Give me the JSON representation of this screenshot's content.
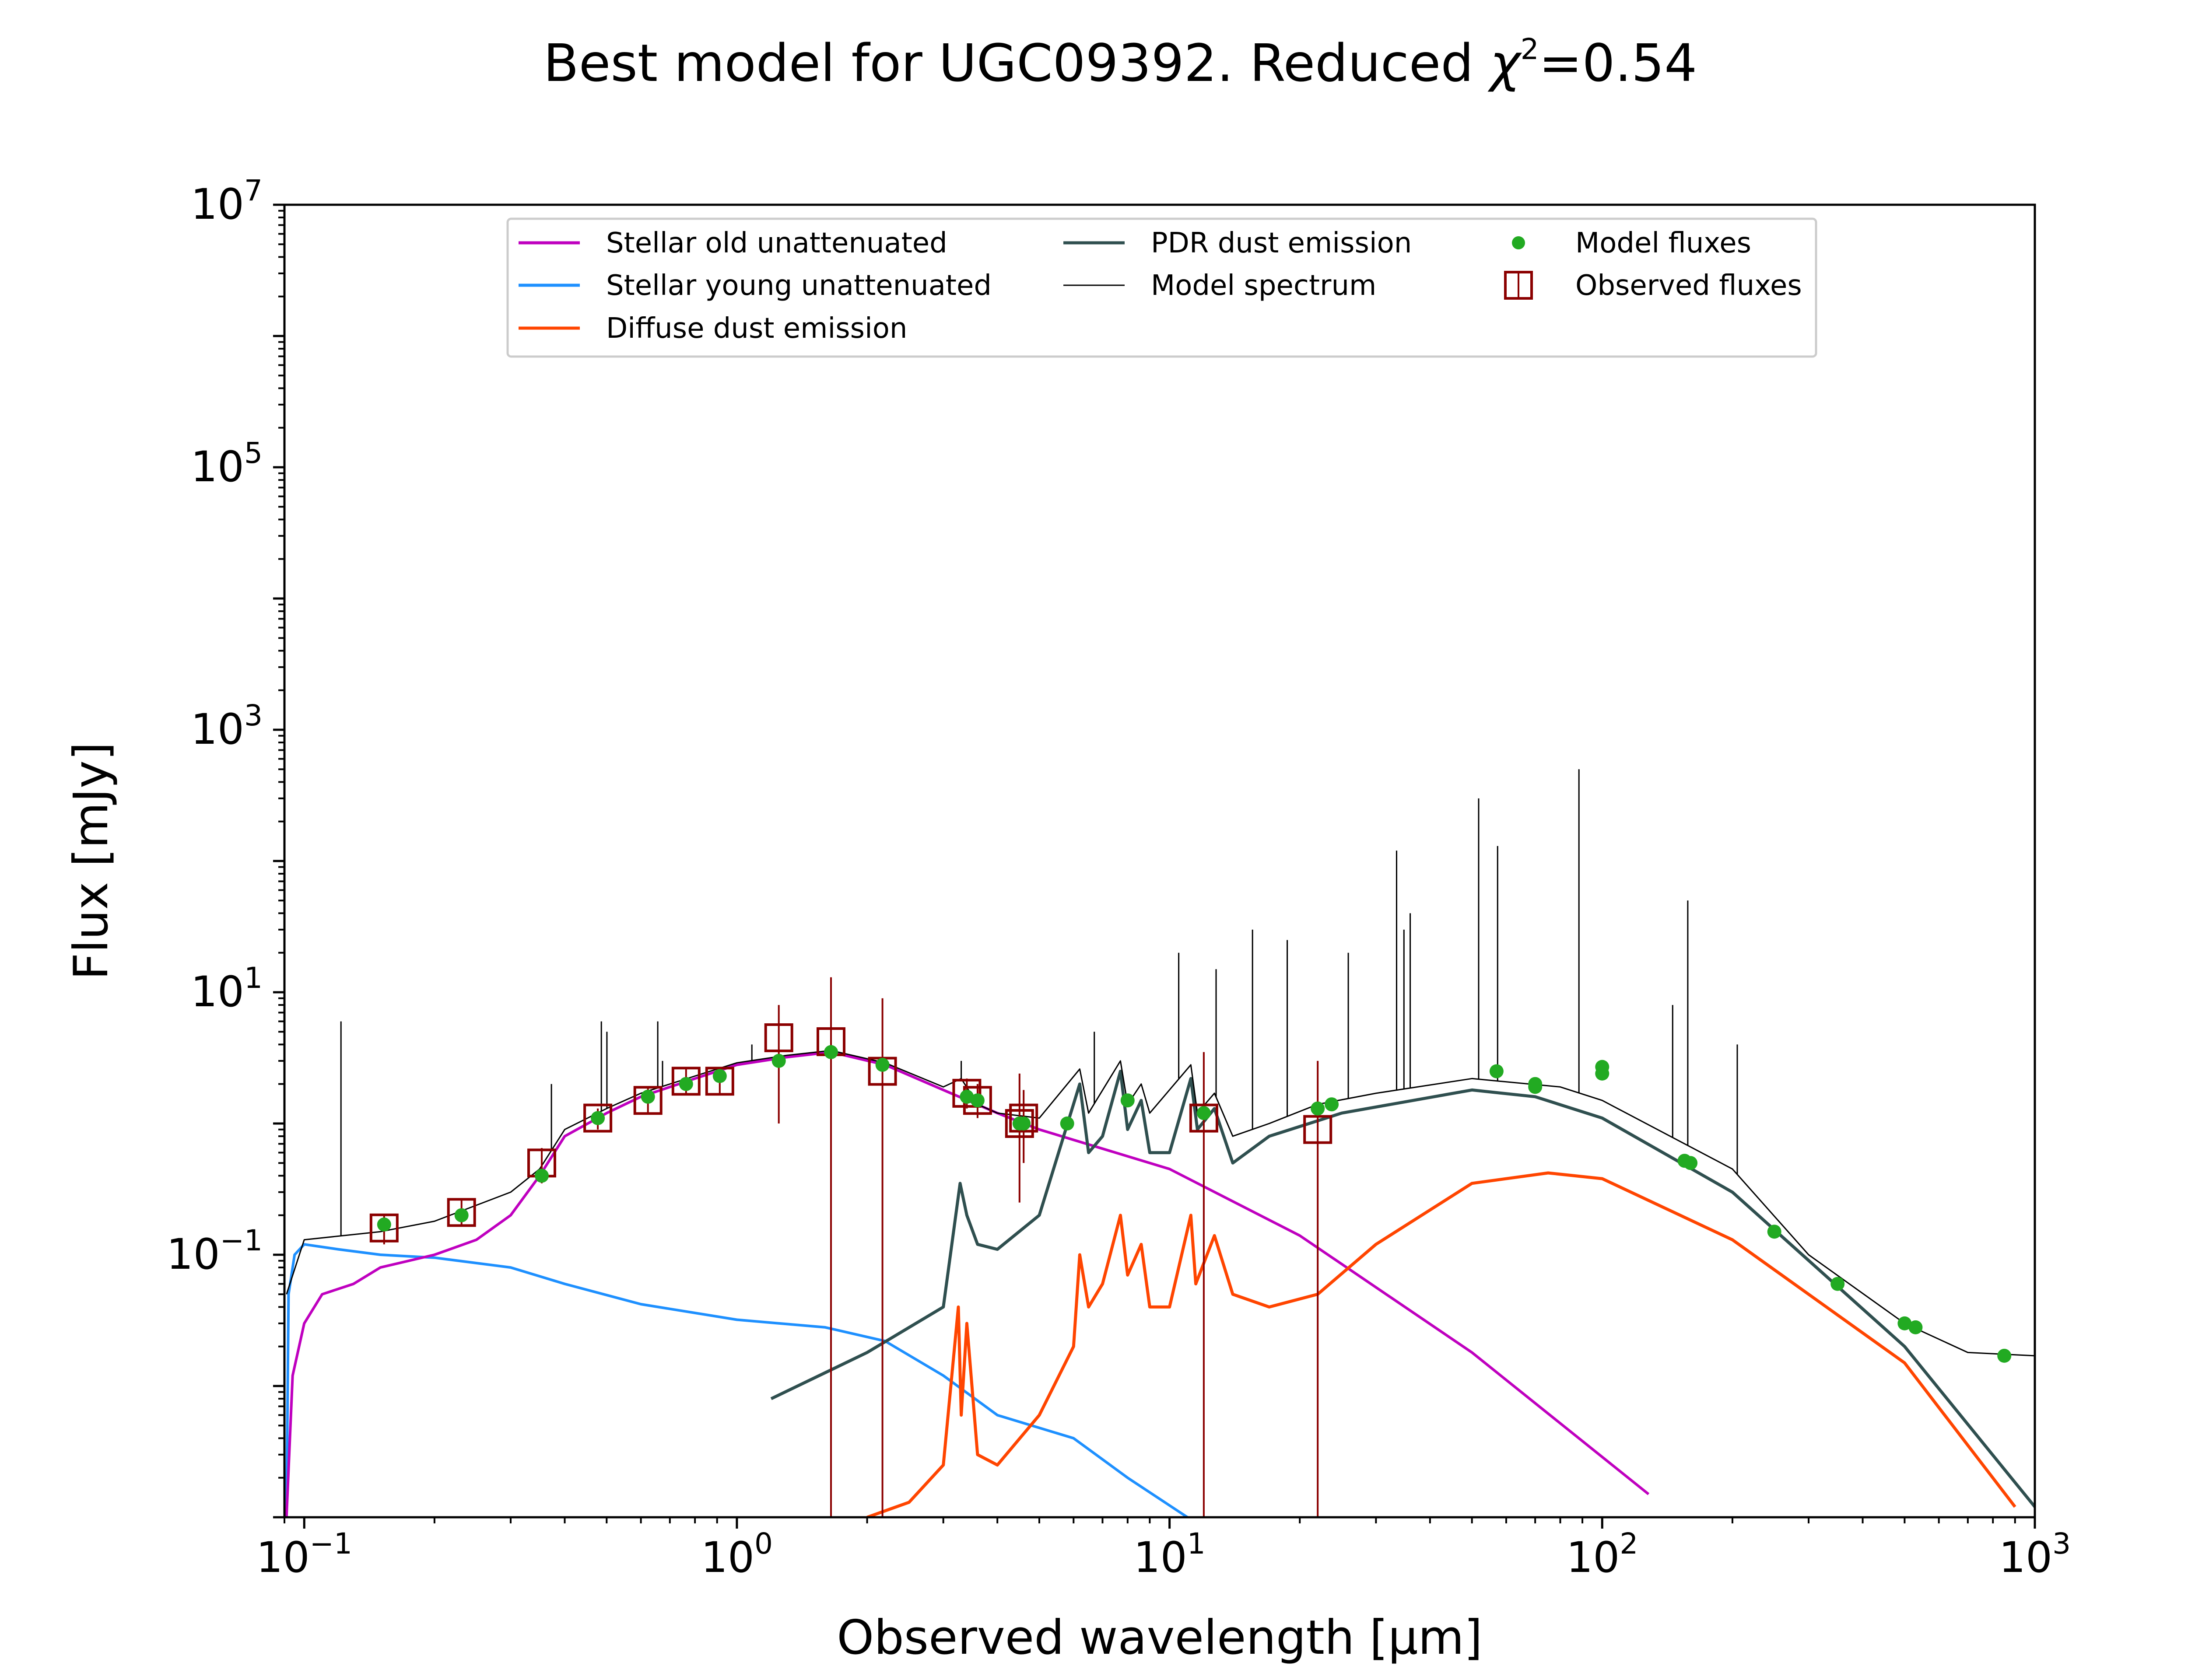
{
  "title": {
    "prefix": "Best model for UGC09392. Reduced ",
    "chi": "χ",
    "sup": "2",
    "suffix": "=0.54"
  },
  "colors": {
    "stellar_old": "#bf00bf",
    "stellar_young": "#1e90ff",
    "diffuse_dust": "#ff4500",
    "pdr_dust": "#2f4f4f",
    "model_spectrum": "#000000",
    "model_fluxes": "#22aa22",
    "observed_fluxes": "#8b0000"
  },
  "chart_data": {
    "type": "line",
    "title": "Best model for UGC09392. Reduced χ²=0.54",
    "xlabel": "Observed wavelength [μm]",
    "ylabel": "Flux [mJy]",
    "xscale": "log",
    "yscale": "log",
    "xlim": [
      0.09,
      1000
    ],
    "ylim": [
      0.001,
      10000000
    ],
    "x_ticks": [
      {
        "value": 0.1,
        "base": "10",
        "exp": "−1"
      },
      {
        "value": 1,
        "base": "10",
        "exp": "0"
      },
      {
        "value": 10,
        "base": "10",
        "exp": "1"
      },
      {
        "value": 100,
        "base": "10",
        "exp": "2"
      },
      {
        "value": 1000,
        "base": "10",
        "exp": "3"
      }
    ],
    "y_ticks": [
      {
        "value": 0.1,
        "base": "10",
        "exp": "−1"
      },
      {
        "value": 10,
        "base": "10",
        "exp": "1"
      },
      {
        "value": 1000,
        "base": "10",
        "exp": "3"
      },
      {
        "value": 100000,
        "base": "10",
        "exp": "5"
      },
      {
        "value": 10000000,
        "base": "10",
        "exp": "7"
      }
    ],
    "legend_position": "upper center",
    "legend": [
      {
        "label": "Stellar old unattenuated",
        "series": "stellar_old"
      },
      {
        "label": "Stellar young unattenuated",
        "series": "stellar_young"
      },
      {
        "label": "Diffuse dust emission",
        "series": "diffuse_dust"
      },
      {
        "label": "PDR dust emission",
        "series": "pdr_dust"
      },
      {
        "label": "Model spectrum",
        "series": "model_spectrum"
      },
      {
        "label": "Model fluxes",
        "series": "model_fluxes"
      },
      {
        "label": "Observed fluxes",
        "series": "observed_fluxes"
      }
    ],
    "series": [
      {
        "key": "stellar_old",
        "name": "Stellar old unattenuated",
        "points": [
          [
            0.091,
            0.001
          ],
          [
            0.094,
            0.012
          ],
          [
            0.1,
            0.03
          ],
          [
            0.11,
            0.05
          ],
          [
            0.13,
            0.06
          ],
          [
            0.15,
            0.08
          ],
          [
            0.2,
            0.1
          ],
          [
            0.25,
            0.13
          ],
          [
            0.3,
            0.2
          ],
          [
            0.35,
            0.4
          ],
          [
            0.4,
            0.8
          ],
          [
            0.5,
            1.2
          ],
          [
            0.6,
            1.6
          ],
          [
            0.8,
            2.2
          ],
          [
            1.0,
            2.8
          ],
          [
            1.3,
            3.2
          ],
          [
            1.65,
            3.5
          ],
          [
            2.2,
            2.8
          ],
          [
            3.0,
            1.8
          ],
          [
            4.0,
            1.2
          ],
          [
            5.0,
            0.9
          ],
          [
            10,
            0.45
          ],
          [
            20,
            0.14
          ],
          [
            50,
            0.018
          ],
          [
            128,
            0.0015
          ]
        ]
      },
      {
        "key": "stellar_young",
        "name": "Stellar young unattenuated",
        "points": [
          [
            0.091,
            0.001
          ],
          [
            0.092,
            0.05
          ],
          [
            0.095,
            0.1
          ],
          [
            0.1,
            0.12
          ],
          [
            0.12,
            0.11
          ],
          [
            0.15,
            0.1
          ],
          [
            0.2,
            0.095
          ],
          [
            0.3,
            0.08
          ],
          [
            0.4,
            0.06
          ],
          [
            0.6,
            0.042
          ],
          [
            1.0,
            0.032
          ],
          [
            1.6,
            0.028
          ],
          [
            2.2,
            0.022
          ],
          [
            3.0,
            0.012
          ],
          [
            4.0,
            0.006
          ],
          [
            6.0,
            0.004
          ],
          [
            8.0,
            0.002
          ],
          [
            11,
            0.001
          ]
        ]
      },
      {
        "key": "diffuse_dust",
        "name": "Diffuse dust emission",
        "points": [
          [
            2.0,
            0.001
          ],
          [
            2.5,
            0.0013
          ],
          [
            3.0,
            0.0025
          ],
          [
            3.25,
            0.04
          ],
          [
            3.3,
            0.006
          ],
          [
            3.4,
            0.03
          ],
          [
            3.6,
            0.003
          ],
          [
            4.0,
            0.0025
          ],
          [
            5.0,
            0.006
          ],
          [
            6.0,
            0.02
          ],
          [
            6.2,
            0.1
          ],
          [
            6.5,
            0.04
          ],
          [
            7.0,
            0.06
          ],
          [
            7.7,
            0.2
          ],
          [
            8.0,
            0.07
          ],
          [
            8.6,
            0.12
          ],
          [
            9.0,
            0.04
          ],
          [
            10,
            0.04
          ],
          [
            11.2,
            0.2
          ],
          [
            11.5,
            0.06
          ],
          [
            12.7,
            0.14
          ],
          [
            14,
            0.05
          ],
          [
            17,
            0.04
          ],
          [
            22,
            0.05
          ],
          [
            30,
            0.12
          ],
          [
            50,
            0.35
          ],
          [
            75,
            0.42
          ],
          [
            100,
            0.38
          ],
          [
            200,
            0.13
          ],
          [
            500,
            0.015
          ],
          [
            900,
            0.0012
          ]
        ]
      },
      {
        "key": "pdr_dust",
        "name": "PDR dust emission",
        "points": [
          [
            1.2,
            0.008
          ],
          [
            2.0,
            0.018
          ],
          [
            3.0,
            0.04
          ],
          [
            3.28,
            0.35
          ],
          [
            3.4,
            0.2
          ],
          [
            3.6,
            0.12
          ],
          [
            4.0,
            0.11
          ],
          [
            5.0,
            0.2
          ],
          [
            6.2,
            2.0
          ],
          [
            6.5,
            0.6
          ],
          [
            7.0,
            0.8
          ],
          [
            7.7,
            2.5
          ],
          [
            8.0,
            0.9
          ],
          [
            8.6,
            1.5
          ],
          [
            9.0,
            0.6
          ],
          [
            10,
            0.6
          ],
          [
            11.2,
            2.2
          ],
          [
            11.6,
            0.9
          ],
          [
            12.7,
            1.3
          ],
          [
            14,
            0.5
          ],
          [
            17,
            0.8
          ],
          [
            25,
            1.2
          ],
          [
            50,
            1.8
          ],
          [
            70,
            1.6
          ],
          [
            100,
            1.1
          ],
          [
            200,
            0.3
          ],
          [
            500,
            0.02
          ],
          [
            1000,
            0.0012
          ]
        ]
      },
      {
        "key": "model_spectrum",
        "name": "Model spectrum",
        "points": [
          [
            0.091,
            0.05
          ],
          [
            0.1,
            0.13
          ],
          [
            0.15,
            0.15
          ],
          [
            0.2,
            0.18
          ],
          [
            0.3,
            0.3
          ],
          [
            0.35,
            0.45
          ],
          [
            0.4,
            0.9
          ],
          [
            0.5,
            1.3
          ],
          [
            0.6,
            1.7
          ],
          [
            0.8,
            2.3
          ],
          [
            1.0,
            2.9
          ],
          [
            1.3,
            3.3
          ],
          [
            1.65,
            3.6
          ],
          [
            2.2,
            2.9
          ],
          [
            3.0,
            1.9
          ],
          [
            3.3,
            2.2
          ],
          [
            3.6,
            1.4
          ],
          [
            4.0,
            1.2
          ],
          [
            5.0,
            1.1
          ],
          [
            6.2,
            2.6
          ],
          [
            6.5,
            1.2
          ],
          [
            7.7,
            3.0
          ],
          [
            8.0,
            1.4
          ],
          [
            8.6,
            2.0
          ],
          [
            9.0,
            1.2
          ],
          [
            11.2,
            2.8
          ],
          [
            11.6,
            1.2
          ],
          [
            12.7,
            1.7
          ],
          [
            14,
            0.8
          ],
          [
            17,
            1.0
          ],
          [
            22,
            1.4
          ],
          [
            30,
            1.7
          ],
          [
            50,
            2.2
          ],
          [
            80,
            1.9
          ],
          [
            100,
            1.5
          ],
          [
            200,
            0.45
          ],
          [
            300,
            0.1
          ],
          [
            500,
            0.03
          ],
          [
            700,
            0.018
          ],
          [
            1000,
            0.017
          ]
        ]
      },
      {
        "key": "model_spectrum_lines",
        "name": "Model spectrum",
        "type": "vlines",
        "x": [
          0.1216,
          0.3727,
          0.4861,
          0.5007,
          0.6563,
          0.6731,
          1.083,
          3.3,
          6.7,
          10.5,
          12.81,
          15.55,
          18.71,
          25.89,
          33.48,
          34.82,
          36.0,
          51.81,
          57.32,
          88.36,
          145.5,
          157.7,
          205.2
        ],
        "y": [
          6,
          2,
          6,
          5,
          6,
          3,
          4,
          3,
          5,
          20,
          15,
          30,
          25,
          20,
          120,
          30,
          40,
          300,
          130,
          500,
          8,
          50,
          4
        ]
      },
      {
        "key": "model_fluxes",
        "name": "Model fluxes",
        "type": "scatter",
        "points": [
          [
            0.153,
            0.17
          ],
          [
            0.231,
            0.2
          ],
          [
            0.354,
            0.4
          ],
          [
            0.477,
            1.1
          ],
          [
            0.623,
            1.6
          ],
          [
            0.763,
            2.0
          ],
          [
            0.913,
            2.3
          ],
          [
            1.25,
            3.0
          ],
          [
            1.65,
            3.5
          ],
          [
            2.17,
            2.8
          ],
          [
            3.4,
            1.6
          ],
          [
            3.6,
            1.5
          ],
          [
            4.5,
            1.0
          ],
          [
            4.6,
            1.0
          ],
          [
            5.8,
            1.0
          ],
          [
            8.0,
            1.5
          ],
          [
            12,
            1.2
          ],
          [
            22,
            1.3
          ],
          [
            23.7,
            1.4
          ],
          [
            57,
            2.5
          ],
          [
            70,
            1.9
          ],
          [
            70,
            2.0
          ],
          [
            100,
            2.4
          ],
          [
            100,
            2.7
          ],
          [
            155,
            0.52
          ],
          [
            160,
            0.5
          ],
          [
            250,
            0.15
          ],
          [
            350,
            0.06
          ],
          [
            500,
            0.03
          ],
          [
            530,
            0.028
          ],
          [
            850,
            0.017
          ]
        ]
      },
      {
        "key": "observed_fluxes",
        "name": "Observed fluxes",
        "type": "scatter_errorbar",
        "points": [
          {
            "x": 0.153,
            "y": 0.16,
            "lo": 0.12,
            "hi": 0.2
          },
          {
            "x": 0.231,
            "y": 0.21,
            "lo": 0.17,
            "hi": 0.26
          },
          {
            "x": 0.354,
            "y": 0.5,
            "lo": 0.35,
            "hi": 0.65
          },
          {
            "x": 0.477,
            "y": 1.1,
            "lo": 0.9,
            "hi": 1.3
          },
          {
            "x": 0.623,
            "y": 1.5,
            "lo": 1.2,
            "hi": 1.9
          },
          {
            "x": 0.763,
            "y": 2.1,
            "lo": 1.7,
            "hi": 2.6
          },
          {
            "x": 0.913,
            "y": 2.1,
            "lo": 1.7,
            "hi": 2.6
          },
          {
            "x": 1.25,
            "y": 4.5,
            "lo": 1.0,
            "hi": 8.0
          },
          {
            "x": 1.65,
            "y": 4.2,
            "lo": 0.001,
            "hi": 13
          },
          {
            "x": 2.17,
            "y": 2.5,
            "lo": 0.001,
            "hi": 9
          },
          {
            "x": 3.4,
            "y": 1.7,
            "lo": 1.3,
            "hi": 2.2
          },
          {
            "x": 3.6,
            "y": 1.5,
            "lo": 1.1,
            "hi": 2.0
          },
          {
            "x": 4.5,
            "y": 1.0,
            "lo": 0.25,
            "hi": 2.4
          },
          {
            "x": 4.6,
            "y": 1.1,
            "lo": 0.5,
            "hi": 1.8
          },
          {
            "x": 12,
            "y": 1.1,
            "lo": 0.001,
            "hi": 3.5
          },
          {
            "x": 22,
            "y": 0.9,
            "lo": 0.001,
            "hi": 3.0
          }
        ]
      }
    ]
  }
}
